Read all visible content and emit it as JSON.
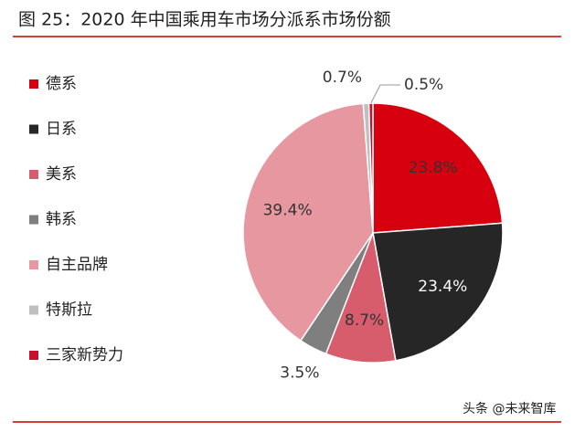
{
  "chart_data": {
    "type": "pie",
    "title": "图 25：2020 年中国乘用车市场分派系市场份额",
    "categories": [
      "德系",
      "日系",
      "美系",
      "韩系",
      "自主品牌",
      "特斯拉",
      "三家新势力"
    ],
    "values": [
      23.8,
      23.4,
      8.7,
      3.5,
      39.4,
      0.7,
      0.5
    ],
    "value_labels": [
      "23.8%",
      "23.4%",
      "8.7%",
      "3.5%",
      "39.4%",
      "0.7%",
      "0.5%"
    ],
    "colors": [
      "#d7000f",
      "#262626",
      "#d85d6c",
      "#7f7f7f",
      "#e6979f",
      "#bfbfbf",
      "#c8102e"
    ],
    "watermark": "头条 @未来智库"
  }
}
